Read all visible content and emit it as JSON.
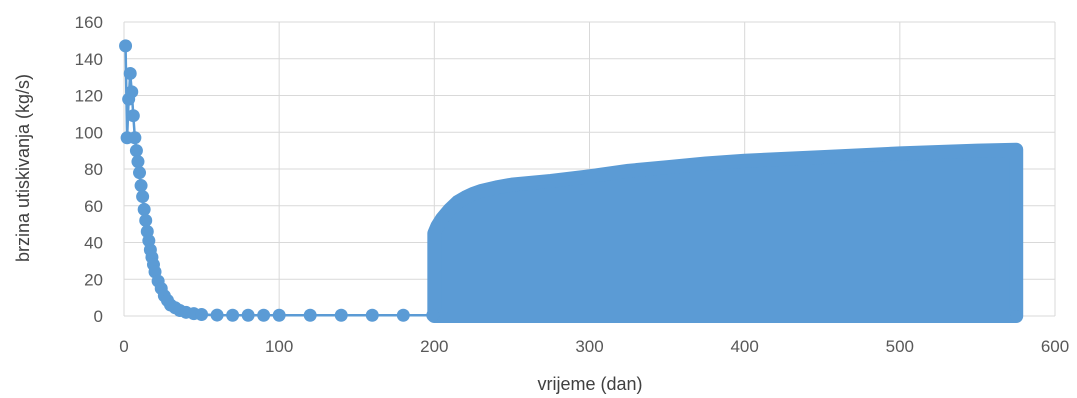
{
  "chart_data": {
    "type": "scatter",
    "xlabel": "vrijeme (dan)",
    "ylabel": "brzina utiskivanja (kg/s)",
    "xlim": [
      0,
      600
    ],
    "ylim": [
      0,
      160
    ],
    "xticks": [
      0,
      100,
      200,
      300,
      400,
      500,
      600
    ],
    "yticks": [
      0,
      20,
      40,
      60,
      80,
      100,
      120,
      140,
      160
    ],
    "grid": true,
    "legend": "none",
    "color": "#5B9BD5",
    "series": [
      {
        "x": [
          1,
          2,
          3,
          4,
          5,
          6,
          7,
          8,
          9,
          10,
          11,
          12,
          13,
          14,
          15,
          16,
          17,
          18,
          19,
          20,
          22,
          24,
          26,
          28,
          30,
          33,
          36,
          40,
          45,
          50,
          60,
          70,
          80,
          90,
          100,
          120,
          140,
          160,
          180,
          199
        ],
        "y": [
          147,
          97,
          118,
          132,
          122,
          109,
          97,
          90,
          84,
          78,
          71,
          65,
          58,
          52,
          46,
          41,
          36,
          32,
          28,
          24,
          19,
          15,
          11,
          8.5,
          6,
          4.5,
          3,
          2,
          1.3,
          0.8,
          0.5,
          0.4,
          0.4,
          0.4,
          0.4,
          0.4,
          0.4,
          0.4,
          0.4,
          0.4
        ]
      }
    ],
    "band": {
      "x": [
        200,
        202,
        205,
        210,
        215,
        220,
        225,
        230,
        240,
        250,
        275,
        300,
        325,
        350,
        375,
        400,
        450,
        500,
        550,
        575
      ],
      "upper": [
        45,
        49,
        53,
        58,
        62,
        64.5,
        66.5,
        68,
        70,
        71.5,
        73.5,
        76,
        79,
        81,
        83,
        84.5,
        86.5,
        88.5,
        90,
        90.5
      ],
      "lower": [
        0,
        0,
        0,
        0,
        0,
        0,
        0,
        0,
        0,
        0,
        0,
        0,
        0,
        0,
        0,
        0,
        0,
        0,
        0,
        0
      ]
    }
  }
}
